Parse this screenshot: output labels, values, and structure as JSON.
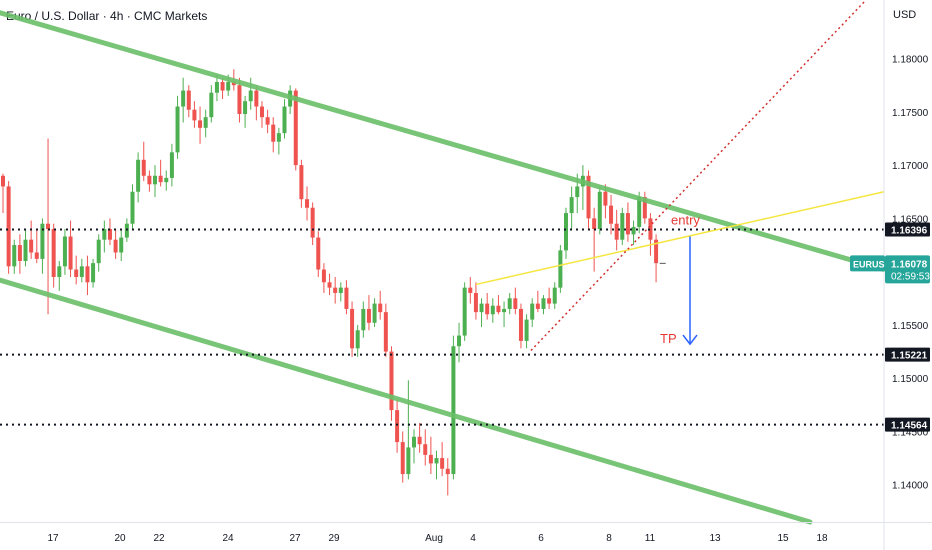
{
  "header": {
    "symbol_title": "Euro / U.S. Dollar · 4h · CMC Markets",
    "currency": "USD"
  },
  "colors": {
    "up": "#26a69a",
    "up_candle": "#4caf50",
    "down": "#ef5350",
    "channel": "#6abf69",
    "yellow_line": "#f5e642",
    "projection": "#d32f2f",
    "arrow": "#2962ff",
    "text_red": "#e53935"
  },
  "chart_data": {
    "type": "candlestick",
    "title": "Euro / U.S. Dollar · 4h · CMC Markets",
    "symbol": "EURUSD",
    "timeframe": "4h",
    "ylim": [
      1.1365,
      1.1855
    ],
    "y_ticks": [
      "1.18000",
      "1.17500",
      "1.17000",
      "1.16500",
      "1.15500",
      "1.15000",
      "1.14500",
      "1.14000"
    ],
    "x_ticks": [
      "17",
      "20",
      "22",
      "24",
      "27",
      "29",
      "Aug",
      "4",
      "6",
      "8",
      "11",
      "13",
      "15",
      "18"
    ],
    "current_price": {
      "label": "EURUSD",
      "value": "1.16078",
      "countdown": "02:59:53"
    },
    "horizontal_levels": [
      {
        "value": "1.16396"
      },
      {
        "value": "1.15221"
      },
      {
        "value": "1.14564"
      }
    ],
    "annotations": {
      "entry": "entry",
      "tp": "TP"
    },
    "ohlc": [
      [
        1.169,
        1.1692,
        1.1655,
        1.168
      ],
      [
        1.168,
        1.1685,
        1.1598,
        1.1605
      ],
      [
        1.1605,
        1.163,
        1.1598,
        1.1625
      ],
      [
        1.1625,
        1.1635,
        1.1598,
        1.161
      ],
      [
        1.161,
        1.164,
        1.1605,
        1.163
      ],
      [
        1.163,
        1.1648,
        1.1612,
        1.1618
      ],
      [
        1.1618,
        1.164,
        1.1608,
        1.1612
      ],
      [
        1.1612,
        1.165,
        1.1598,
        1.1645
      ],
      [
        1.1645,
        1.1725,
        1.156,
        1.164
      ],
      [
        1.164,
        1.1645,
        1.1585,
        1.1595
      ],
      [
        1.1595,
        1.161,
        1.1582,
        1.1605
      ],
      [
        1.1605,
        1.164,
        1.1597,
        1.1633
      ],
      [
        1.1633,
        1.1648,
        1.1595,
        1.1602
      ],
      [
        1.1602,
        1.1615,
        1.1588,
        1.1595
      ],
      [
        1.1595,
        1.1612,
        1.159,
        1.1605
      ],
      [
        1.1605,
        1.1615,
        1.1578,
        1.159
      ],
      [
        1.159,
        1.1612,
        1.1585,
        1.1608
      ],
      [
        1.1608,
        1.1635,
        1.16,
        1.163
      ],
      [
        1.163,
        1.1648,
        1.1618,
        1.164
      ],
      [
        1.164,
        1.165,
        1.1625,
        1.163
      ],
      [
        1.163,
        1.164,
        1.1612,
        1.1618
      ],
      [
        1.1618,
        1.164,
        1.161,
        1.1632
      ],
      [
        1.1632,
        1.165,
        1.1628,
        1.1645
      ],
      [
        1.1645,
        1.1682,
        1.164,
        1.1675
      ],
      [
        1.1675,
        1.1712,
        1.1665,
        1.1705
      ],
      [
        1.1705,
        1.1722,
        1.1685,
        1.169
      ],
      [
        1.169,
        1.1695,
        1.1675,
        1.1682
      ],
      [
        1.1682,
        1.17,
        1.167,
        1.169
      ],
      [
        1.169,
        1.1705,
        1.168,
        1.1684
      ],
      [
        1.1684,
        1.1695,
        1.1676,
        1.1688
      ],
      [
        1.1688,
        1.172,
        1.168,
        1.1712
      ],
      [
        1.1712,
        1.1765,
        1.1706,
        1.1755
      ],
      [
        1.1755,
        1.1782,
        1.174,
        1.177
      ],
      [
        1.177,
        1.1775,
        1.1745,
        1.1752
      ],
      [
        1.1752,
        1.176,
        1.1735,
        1.1742
      ],
      [
        1.1742,
        1.1755,
        1.172,
        1.1735
      ],
      [
        1.1735,
        1.1752,
        1.1726,
        1.1745
      ],
      [
        1.1745,
        1.1775,
        1.174,
        1.1768
      ],
      [
        1.1768,
        1.1785,
        1.176,
        1.1778
      ],
      [
        1.1778,
        1.1782,
        1.1762,
        1.177
      ],
      [
        1.177,
        1.1785,
        1.1765,
        1.1778
      ],
      [
        1.1778,
        1.179,
        1.177,
        1.1775
      ],
      [
        1.1775,
        1.1782,
        1.174,
        1.1748
      ],
      [
        1.1748,
        1.1765,
        1.1735,
        1.176
      ],
      [
        1.176,
        1.1782,
        1.1752,
        1.177
      ],
      [
        1.177,
        1.1775,
        1.1742,
        1.1755
      ],
      [
        1.1755,
        1.176,
        1.1735,
        1.1745
      ],
      [
        1.1745,
        1.1752,
        1.173,
        1.1738
      ],
      [
        1.1738,
        1.1745,
        1.1712,
        1.1722
      ],
      [
        1.1722,
        1.1735,
        1.171,
        1.173
      ],
      [
        1.173,
        1.1762,
        1.1725,
        1.1755
      ],
      [
        1.1755,
        1.1775,
        1.1748,
        1.177
      ],
      [
        1.177,
        1.1772,
        1.1695,
        1.17
      ],
      [
        1.17,
        1.1705,
        1.166,
        1.1668
      ],
      [
        1.1668,
        1.168,
        1.1648,
        1.166
      ],
      [
        1.166,
        1.1665,
        1.1625,
        1.1632
      ],
      [
        1.1632,
        1.1638,
        1.1595,
        1.1602
      ],
      [
        1.1602,
        1.1608,
        1.158,
        1.159
      ],
      [
        1.159,
        1.1598,
        1.1578,
        1.1585
      ],
      [
        1.1585,
        1.1595,
        1.157,
        1.158
      ],
      [
        1.158,
        1.159,
        1.1572,
        1.1585
      ],
      [
        1.1585,
        1.1592,
        1.156,
        1.1565
      ],
      [
        1.1565,
        1.1572,
        1.152,
        1.1528
      ],
      [
        1.1528,
        1.155,
        1.152,
        1.1545
      ],
      [
        1.1545,
        1.1572,
        1.1538,
        1.1565
      ],
      [
        1.1565,
        1.1578,
        1.1545,
        1.1552
      ],
      [
        1.1552,
        1.1575,
        1.1548,
        1.157
      ],
      [
        1.157,
        1.1582,
        1.1555,
        1.1562
      ],
      [
        1.1562,
        1.157,
        1.152,
        1.1525
      ],
      [
        1.1525,
        1.153,
        1.146,
        1.147
      ],
      [
        1.147,
        1.148,
        1.143,
        1.144
      ],
      [
        1.144,
        1.145,
        1.1402,
        1.141
      ],
      [
        1.141,
        1.1498,
        1.1405,
        1.1435
      ],
      [
        1.1435,
        1.1452,
        1.142,
        1.1445
      ],
      [
        1.1445,
        1.1458,
        1.143,
        1.1438
      ],
      [
        1.1438,
        1.1452,
        1.1418,
        1.1428
      ],
      [
        1.1428,
        1.1445,
        1.141,
        1.142
      ],
      [
        1.142,
        1.1432,
        1.1405,
        1.1425
      ],
      [
        1.1425,
        1.144,
        1.1408,
        1.1415
      ],
      [
        1.1415,
        1.1425,
        1.139,
        1.141
      ],
      [
        1.141,
        1.154,
        1.1405,
        1.153
      ],
      [
        1.153,
        1.1552,
        1.1515,
        1.154
      ],
      [
        1.154,
        1.159,
        1.1535,
        1.1585
      ],
      [
        1.1585,
        1.1595,
        1.157,
        1.158
      ],
      [
        1.158,
        1.159,
        1.1555,
        1.1562
      ],
      [
        1.1562,
        1.1575,
        1.1548,
        1.157
      ],
      [
        1.157,
        1.158,
        1.1555,
        1.156
      ],
      [
        1.156,
        1.1575,
        1.1552,
        1.1568
      ],
      [
        1.1568,
        1.1578,
        1.156,
        1.1562
      ],
      [
        1.1562,
        1.1572,
        1.1548,
        1.1565
      ],
      [
        1.1565,
        1.158,
        1.156,
        1.1575
      ],
      [
        1.1575,
        1.1585,
        1.156,
        1.1565
      ],
      [
        1.1565,
        1.157,
        1.1528,
        1.1535
      ],
      [
        1.1535,
        1.156,
        1.1528,
        1.1555
      ],
      [
        1.1555,
        1.1575,
        1.1548,
        1.157
      ],
      [
        1.157,
        1.1582,
        1.1562,
        1.1565
      ],
      [
        1.1565,
        1.1578,
        1.156,
        1.1575
      ],
      [
        1.1575,
        1.1585,
        1.1565,
        1.157
      ],
      [
        1.157,
        1.159,
        1.1565,
        1.1585
      ],
      [
        1.1585,
        1.1625,
        1.158,
        1.162
      ],
      [
        1.162,
        1.166,
        1.1612,
        1.1655
      ],
      [
        1.1655,
        1.168,
        1.164,
        1.167
      ],
      [
        1.167,
        1.1692,
        1.1655,
        1.168
      ],
      [
        1.168,
        1.17,
        1.1658,
        1.169
      ],
      [
        1.169,
        1.1695,
        1.164,
        1.165
      ],
      [
        1.165,
        1.166,
        1.16,
        1.164
      ],
      [
        1.164,
        1.168,
        1.1635,
        1.1675
      ],
      [
        1.1675,
        1.1682,
        1.165,
        1.1662
      ],
      [
        1.1662,
        1.1672,
        1.1635,
        1.1645
      ],
      [
        1.1645,
        1.1658,
        1.162,
        1.163
      ],
      [
        1.163,
        1.166,
        1.1625,
        1.1655
      ],
      [
        1.1655,
        1.1665,
        1.1628,
        1.1635
      ],
      [
        1.1635,
        1.1648,
        1.1625,
        1.1642
      ],
      [
        1.1642,
        1.1675,
        1.1636,
        1.167
      ],
      [
        1.167,
        1.1675,
        1.1645,
        1.165
      ],
      [
        1.165,
        1.1655,
        1.1615,
        1.163
      ],
      [
        1.163,
        1.1635,
        1.159,
        1.1608
      ]
    ]
  }
}
